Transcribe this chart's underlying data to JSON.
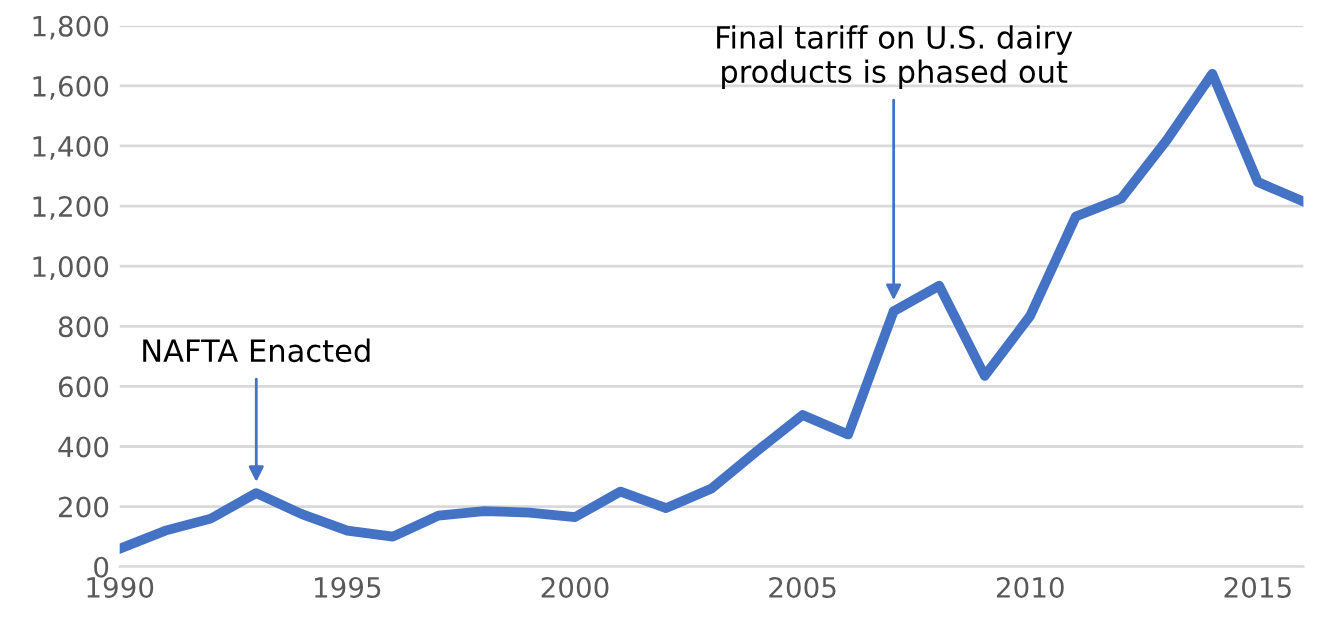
{
  "chart_data": {
    "type": "line",
    "x": [
      1990,
      1991,
      1992,
      1993,
      1994,
      1995,
      1996,
      1997,
      1998,
      1999,
      2000,
      2001,
      2002,
      2003,
      2004,
      2005,
      2006,
      2007,
      2008,
      2009,
      2010,
      2011,
      2012,
      2013,
      2014,
      2015,
      2016
    ],
    "series": [
      {
        "color": "#4472c4",
        "values": [
          60,
          120,
          160,
          245,
          175,
          120,
          100,
          170,
          185,
          180,
          165,
          250,
          195,
          260,
          385,
          505,
          440,
          850,
          935,
          635,
          835,
          1165,
          1225,
          1420,
          1640,
          1280,
          1215
        ]
      }
    ],
    "xlim": [
      1990,
      2016
    ],
    "xticks": [
      1990,
      1995,
      2000,
      2005,
      2010,
      2015
    ],
    "ylim": [
      0,
      1800
    ],
    "yticks": [
      {
        "value": 0,
        "label": "0"
      },
      {
        "value": 200,
        "label": "200"
      },
      {
        "value": 400,
        "label": "400"
      },
      {
        "value": 600,
        "label": "600"
      },
      {
        "value": 800,
        "label": "800"
      },
      {
        "value": 1000,
        "label": "1,000"
      },
      {
        "value": 1200,
        "label": "1,200"
      },
      {
        "value": 1400,
        "label": "1,400"
      },
      {
        "value": 1600,
        "label": "1,600"
      },
      {
        "value": 1800,
        "label": "1,800"
      }
    ],
    "grid": "y",
    "marker": "none",
    "line_style": "solid",
    "annotations": [
      {
        "text": "NAFTA Enacted",
        "x": 1993,
        "y": 245
      },
      {
        "text": "Final tariff on U.S. dairy\nproducts is phased out",
        "x": 2007,
        "y": 850
      }
    ]
  }
}
